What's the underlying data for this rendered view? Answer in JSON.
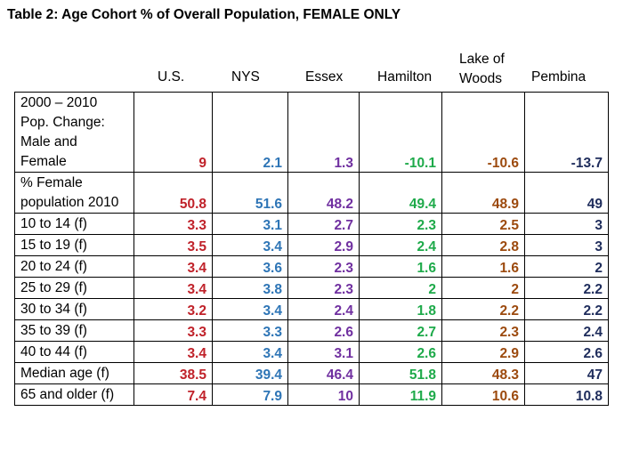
{
  "title": "Table 2:  Age Cohort % of Overall Population, FEMALE ONLY",
  "columns": {
    "us": "U.S.",
    "nys": "NYS",
    "essex": "Essex",
    "hamilton": "Hamilton",
    "lake_line1": "Lake of",
    "lake_line2": "Woods",
    "pembina": "Pembina"
  },
  "colors": {
    "us": "#c0222a",
    "nys": "#2e75b6",
    "essex": "#7030a0",
    "hamilton": "#1eaa4a",
    "lake_of_woods": "#9c4a0e",
    "pembina": "#1f2d5c"
  },
  "rows": [
    {
      "label_lines": [
        "2000 – 2010",
        "Pop. Change:",
        "Male and",
        "Female"
      ],
      "values": [
        "9",
        "2.1",
        "1.3",
        "-10.1",
        "-10.6",
        "-13.7"
      ]
    },
    {
      "label_lines": [
        "% Female",
        "population 2010"
      ],
      "values": [
        "50.8",
        "51.6",
        "48.2",
        "49.4",
        "48.9",
        "49"
      ]
    },
    {
      "label_lines": [
        "10 to 14 (f)"
      ],
      "values": [
        "3.3",
        "3.1",
        "2.7",
        "2.3",
        "2.5",
        "3"
      ]
    },
    {
      "label_lines": [
        "15 to 19 (f)"
      ],
      "values": [
        "3.5",
        "3.4",
        "2.9",
        "2.4",
        "2.8",
        "3"
      ]
    },
    {
      "label_lines": [
        "20 to 24 (f)"
      ],
      "values": [
        "3.4",
        "3.6",
        "2.3",
        "1.6",
        "1.6",
        "2"
      ]
    },
    {
      "label_lines": [
        "25 to 29 (f)"
      ],
      "values": [
        "3.4",
        "3.8",
        "2.3",
        "2",
        "2",
        "2.2"
      ]
    },
    {
      "label_lines": [
        "30 to 34 (f)"
      ],
      "values": [
        "3.2",
        "3.4",
        "2.4",
        "1.8",
        "2.2",
        "2.2"
      ]
    },
    {
      "label_lines": [
        "35 to 39 (f)"
      ],
      "values": [
        "3.3",
        "3.3",
        "2.6",
        "2.7",
        "2.3",
        "2.4"
      ]
    },
    {
      "label_lines": [
        "40 to 44 (f)"
      ],
      "values": [
        "3.4",
        "3.4",
        "3.1",
        "2.6",
        "2.9",
        "2.6"
      ]
    },
    {
      "label_lines": [
        "Median age (f)"
      ],
      "values": [
        "38.5",
        "39.4",
        "46.4",
        "51.8",
        "48.3",
        "47"
      ]
    },
    {
      "label_lines": [
        "65 and older (f)"
      ],
      "values": [
        "7.4",
        "7.9",
        "10",
        "11.9",
        "10.6",
        "10.8"
      ]
    }
  ]
}
